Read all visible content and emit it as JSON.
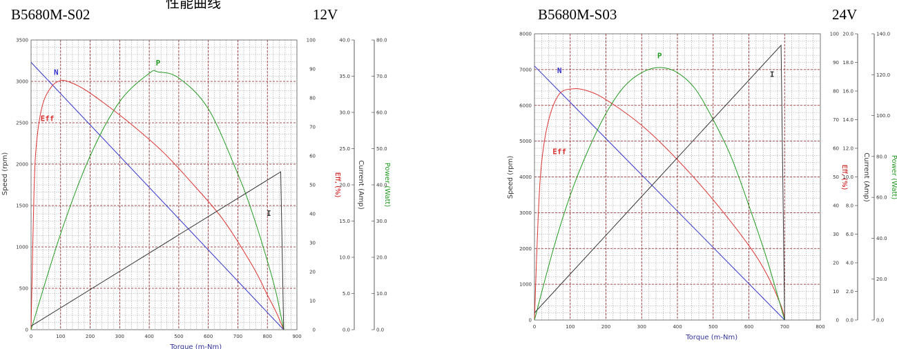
{
  "top_text": "性能曲线",
  "chart_data": [
    {
      "type": "line",
      "model": "B5680M-S02",
      "voltage": "12V",
      "xlabel": "Torque (m-Nm)",
      "xlim": [
        0,
        900
      ],
      "x_ticks": [
        "0",
        "100",
        "200",
        "300",
        "400",
        "500",
        "600",
        "700",
        "800",
        "900"
      ],
      "axes": {
        "speed": {
          "label": "Speed (rpm)",
          "range": [
            0,
            3500
          ],
          "ticks": [
            "0",
            "500",
            "1000",
            "1500",
            "2000",
            "2500",
            "3000",
            "3500"
          ],
          "color": "#333333"
        },
        "eff": {
          "label": "Eff, (%)",
          "range": [
            0,
            100
          ],
          "ticks": [
            "0",
            "10",
            "20",
            "30",
            "40",
            "50",
            "60",
            "70",
            "80",
            "90",
            "100"
          ],
          "color": "#cc0000"
        },
        "current": {
          "label": "Current (Amp)",
          "range": [
            0,
            40
          ],
          "ticks": [
            "0.0",
            "5.0",
            "10.0",
            "15.0",
            "20.0",
            "25.0",
            "30.0",
            "35.0",
            "40.0"
          ],
          "color": "#333333"
        },
        "power": {
          "label": "Power (Watt)",
          "range": [
            0,
            80
          ],
          "ticks": [
            "0.0",
            "10.0",
            "20.0",
            "30.0",
            "40.0",
            "50.0",
            "60.0",
            "70.0",
            "80.0"
          ],
          "color": "#229922"
        }
      },
      "grid": true,
      "series": [
        {
          "name": "N",
          "axis": "speed",
          "color": "#3333cc",
          "x": [
            0,
            855
          ],
          "y": [
            3230,
            0
          ],
          "label_at": [
            85,
            3080
          ]
        },
        {
          "name": "Eff",
          "axis": "eff",
          "color": "#dd3333",
          "x": [
            0,
            10,
            20,
            40,
            70,
            100,
            130,
            180,
            250,
            350,
            450,
            550,
            650,
            750,
            800,
            830,
            855
          ],
          "y": [
            0,
            48,
            66,
            78,
            84,
            86,
            85.5,
            83,
            78,
            70,
            61,
            50,
            38,
            22,
            12,
            6,
            0
          ],
          "label_at": [
            55,
            72
          ]
        },
        {
          "name": "P",
          "axis": "power",
          "color": "#229922",
          "x": [
            0,
            100,
            200,
            300,
            400,
            430,
            500,
            600,
            700,
            750,
            800,
            830,
            855
          ],
          "y": [
            0,
            26.5,
            48,
            63,
            70.8,
            71.2,
            69.5,
            61,
            43,
            32,
            19,
            10,
            0
          ],
          "label_at": [
            430,
            73
          ]
        },
        {
          "name": "I",
          "axis": "current",
          "color": "#333333",
          "x": [
            0,
            845,
            855
          ],
          "y": [
            0.5,
            21.8,
            0
          ],
          "label_at": [
            805,
            15.7
          ]
        }
      ]
    },
    {
      "type": "line",
      "model": "B5680M-S03",
      "voltage": "24V",
      "xlabel": "Torque (m-Nm)",
      "xlim": [
        0,
        800
      ],
      "x_ticks": [
        "0",
        "100",
        "200",
        "300",
        "400",
        "500",
        "600",
        "700",
        "800"
      ],
      "axes": {
        "speed": {
          "label": "Speed (rpm)",
          "range": [
            0,
            8000
          ],
          "ticks": [
            "0",
            "1000",
            "2000",
            "3000",
            "4000",
            "5000",
            "6000",
            "7000",
            "8000"
          ],
          "color": "#333333"
        },
        "eff": {
          "label": "Eff, (%)",
          "range": [
            0,
            100
          ],
          "ticks": [
            "0",
            "10",
            "20",
            "30",
            "40",
            "50",
            "60",
            "70",
            "80",
            "90",
            "100"
          ],
          "color": "#cc0000"
        },
        "current": {
          "label": "Current (Amp)",
          "range": [
            0,
            20
          ],
          "ticks": [
            "0.0",
            "2.0",
            "4.0",
            "6.0",
            "8.0",
            "10.0",
            "12.0",
            "14.0",
            "16.0",
            "18.0",
            "20.0"
          ],
          "color": "#333333"
        },
        "power": {
          "label": "Power (Watt)",
          "range": [
            0,
            140
          ],
          "ticks": [
            "0.0",
            "20.0",
            "40.0",
            "60.0",
            "80.0",
            "100.0",
            "120.0",
            "140.0"
          ],
          "color": "#229922"
        }
      },
      "grid": true,
      "series": [
        {
          "name": "N",
          "axis": "speed",
          "color": "#3333cc",
          "x": [
            0,
            700
          ],
          "y": [
            7100,
            0
          ],
          "label_at": [
            70,
            6900
          ]
        },
        {
          "name": "Eff",
          "axis": "eff",
          "color": "#dd3333",
          "x": [
            0,
            10,
            20,
            40,
            70,
            110,
            150,
            200,
            300,
            400,
            500,
            600,
            650,
            690,
            700
          ],
          "y": [
            0,
            35,
            55,
            70,
            79,
            80.8,
            80,
            77,
            68,
            56,
            42,
            26,
            16,
            5,
            0
          ],
          "label_at": [
            70,
            58
          ]
        },
        {
          "name": "P",
          "axis": "power",
          "color": "#229922",
          "x": [
            0,
            50,
            100,
            150,
            200,
            250,
            300,
            350,
            400,
            450,
            500,
            550,
            600,
            650,
            700
          ],
          "y": [
            0,
            33,
            61,
            83,
            101,
            114,
            121,
            123.5,
            121,
            113,
            98,
            80,
            56,
            30,
            0
          ],
          "label_at": [
            350,
            128
          ]
        },
        {
          "name": "I",
          "axis": "current",
          "color": "#333333",
          "x": [
            0,
            690,
            700
          ],
          "y": [
            0.5,
            19.2,
            0
          ],
          "label_at": [
            665,
            17
          ]
        }
      ]
    }
  ]
}
